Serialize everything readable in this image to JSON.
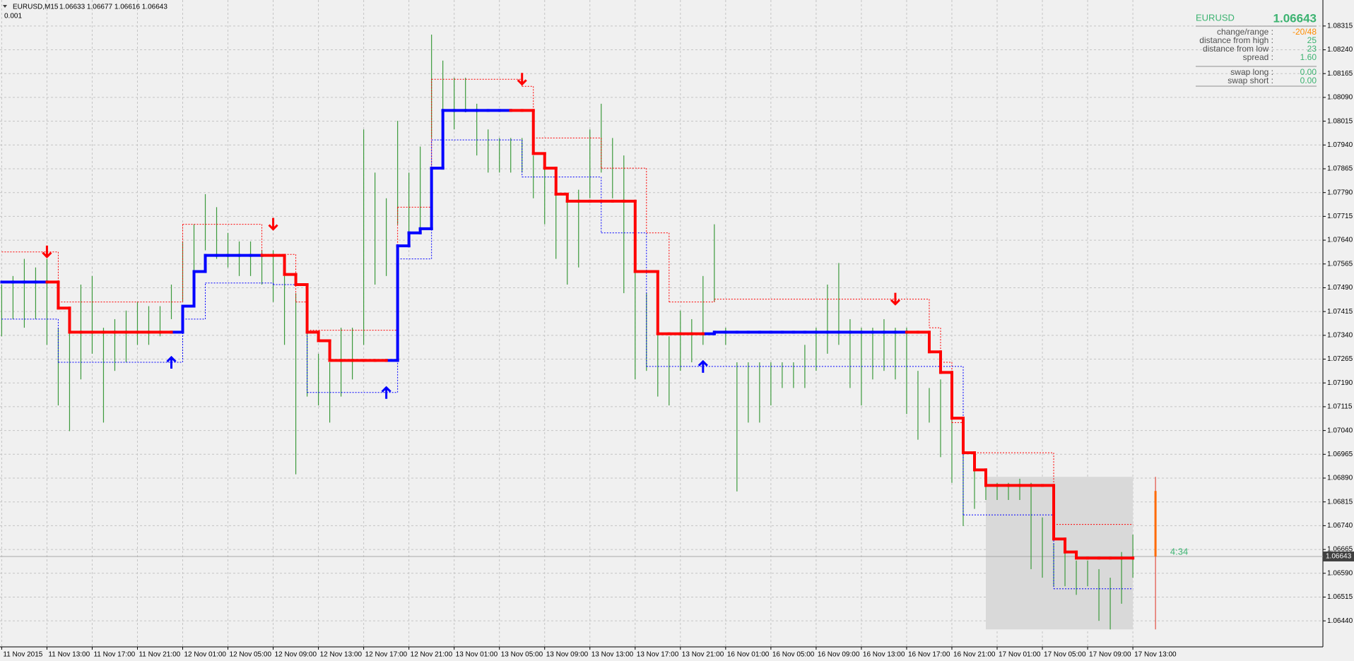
{
  "header": {
    "title": "EURUSD,M15",
    "ohlc": "1.06633 1.06677 1.06616 1.06643",
    "sub": "0.001"
  },
  "info": {
    "symbol": "EURUSD",
    "price": "1.06643",
    "rows": [
      {
        "label": "change/range :",
        "value": "-20/48",
        "color": "#ff8c00"
      },
      {
        "label": "distance from high :",
        "value": "25",
        "color": "#3cb371"
      },
      {
        "label": "distance from low :",
        "value": "23",
        "color": "#3cb371"
      },
      {
        "label": "spread :",
        "value": "1.60",
        "color": "#3cb371"
      },
      {
        "label": "swap long :",
        "value": "0.00",
        "color": "#3cb371"
      },
      {
        "label": "swap short :",
        "value": "0.00",
        "color": "#3cb371"
      }
    ]
  },
  "chart_data": {
    "type": "ohlc",
    "color": "#3c9a3c",
    "grid": true,
    "xlim": [
      -0.15,
      116.8
    ],
    "ylim": [
      1.06358,
      1.08397
    ],
    "xticks": [
      {
        "value": 0,
        "label": "11 Nov 2015"
      },
      {
        "value": 4,
        "label": "11 Nov 13:00"
      },
      {
        "value": 8,
        "label": "11 Nov 17:00"
      },
      {
        "value": 12,
        "label": "11 Nov 21:00"
      },
      {
        "value": 16,
        "label": "12 Nov 01:00"
      },
      {
        "value": 20,
        "label": "12 Nov 05:00"
      },
      {
        "value": 24,
        "label": "12 Nov 09:00"
      },
      {
        "value": 28,
        "label": "12 Nov 13:00"
      },
      {
        "value": 32,
        "label": "12 Nov 17:00"
      },
      {
        "value": 36,
        "label": "12 Nov 21:00"
      },
      {
        "value": 40,
        "label": "13 Nov 01:00"
      },
      {
        "value": 44,
        "label": "13 Nov 05:00"
      },
      {
        "value": 48,
        "label": "13 Nov 09:00"
      },
      {
        "value": 52,
        "label": "13 Nov 13:00"
      },
      {
        "value": 56,
        "label": "13 Nov 17:00"
      },
      {
        "value": 60,
        "label": "13 Nov 21:00"
      },
      {
        "value": 64,
        "label": "16 Nov 01:00"
      },
      {
        "value": 68,
        "label": "16 Nov 05:00"
      },
      {
        "value": 72,
        "label": "16 Nov 09:00"
      },
      {
        "value": 76,
        "label": "16 Nov 13:00"
      },
      {
        "value": 80,
        "label": "16 Nov 17:00"
      },
      {
        "value": 84,
        "label": "16 Nov 21:00"
      },
      {
        "value": 88,
        "label": "17 Nov 01:00"
      },
      {
        "value": 92,
        "label": "17 Nov 05:00"
      },
      {
        "value": 96,
        "label": "17 Nov 09:00"
      },
      {
        "value": 100,
        "label": "17 Nov 13:00"
      }
    ],
    "yticks": [
      1.08315,
      {
        "value": 1.0824,
        "label": "1.08240"
      },
      1.08165,
      {
        "value": 1.0809,
        "label": "1.08090"
      },
      1.08015,
      {
        "value": 1.0794,
        "label": "1.07940"
      },
      1.07865,
      {
        "value": 1.0779,
        "label": "1.07790"
      },
      1.07715,
      {
        "value": 1.0764,
        "label": "1.07640"
      },
      1.07565,
      {
        "value": 1.0749,
        "label": "1.07490"
      },
      1.07415,
      {
        "value": 1.0734,
        "label": "1.07340"
      },
      1.07265,
      {
        "value": 1.0719,
        "label": "1.07190"
      },
      1.07115,
      {
        "value": 1.0704,
        "label": "1.07040"
      },
      1.06965,
      {
        "value": 1.0689,
        "label": "1.06890"
      },
      1.06815,
      {
        "value": 1.0674,
        "label": "1.06740"
      },
      1.06665,
      {
        "value": 1.0659,
        "label": "1.06590"
      },
      1.06515,
      {
        "value": 1.0644,
        "label": "1.06440"
      }
    ],
    "high": [
      1.075,
      1.07527,
      1.07581,
      1.07554,
      1.07581,
      1.07364,
      1.07364,
      1.075,
      1.07527,
      1.07364,
      1.07391,
      1.07418,
      1.07445,
      1.07432,
      1.07432,
      1.075,
      1.07636,
      1.0769,
      1.07785,
      1.07744,
      1.07663,
      1.07636,
      1.07636,
      1.07608,
      1.07608,
      1.07527,
      1.07473,
      1.07364,
      1.07282,
      1.07255,
      1.07364,
      1.07364,
      1.07989,
      1.07853,
      1.07772,
      1.08016,
      1.07853,
      1.07935,
      1.08288,
      1.08206,
      1.08152,
      1.08152,
      1.0807,
      1.07989,
      1.07962,
      1.07962,
      1.07962,
      1.07907,
      1.0788,
      1.07799,
      1.07772,
      1.07799,
      1.07989,
      1.0807,
      1.07962,
      1.07907,
      1.07581,
      1.07473,
      1.07391,
      1.07337,
      1.07418,
      1.07391,
      1.07527,
      1.0769,
      1.07364,
      1.07255,
      1.07255,
      1.07255,
      1.07255,
      1.07255,
      1.07255,
      1.0731,
      1.07364,
      1.075,
      1.07568,
      1.07391,
      1.07364,
      1.07364,
      1.07391,
      1.07364,
      1.07364,
      1.07228,
      1.07174,
      1.07201,
      1.07092,
      1.06984,
      1.06929,
      1.06875,
      1.06875,
      1.06875,
      1.06888,
      1.06875,
      1.06766,
      1.06685,
      1.06657,
      1.0663,
      1.0663,
      1.06603,
      1.06576,
      1.06657,
      1.06712
    ],
    "low": [
      1.07337,
      1.07391,
      1.07364,
      1.07391,
      1.0731,
      1.07119,
      1.07038,
      1.07201,
      1.07282,
      1.07065,
      1.07228,
      1.07255,
      1.0731,
      1.0731,
      1.07337,
      1.07391,
      1.07445,
      1.07527,
      1.07608,
      1.07581,
      1.07554,
      1.07527,
      1.07527,
      1.075,
      1.07445,
      1.0731,
      1.06902,
      1.07147,
      1.07119,
      1.07065,
      1.07147,
      1.07201,
      1.0731,
      1.075,
      1.07527,
      1.0769,
      1.07636,
      1.07663,
      1.07962,
      1.08016,
      1.07989,
      1.08043,
      1.07907,
      1.07853,
      1.07853,
      1.07853,
      1.07853,
      1.07772,
      1.0769,
      1.07581,
      1.075,
      1.07554,
      1.07772,
      1.07853,
      1.07772,
      1.07473,
      1.07201,
      1.07228,
      1.07147,
      1.07119,
      1.07228,
      1.07255,
      1.0731,
      1.07445,
      1.0731,
      1.06848,
      1.07065,
      1.07065,
      1.07119,
      1.07174,
      1.07174,
      1.07174,
      1.07228,
      1.07282,
      1.0731,
      1.07174,
      1.07119,
      1.07201,
      1.07228,
      1.07201,
      1.07092,
      1.07011,
      1.07065,
      1.06956,
      1.06875,
      1.06739,
      1.06793,
      1.06821,
      1.06821,
      1.06821,
      1.06821,
      1.06603,
      1.06576,
      1.06549,
      1.06549,
      1.06522,
      1.06549,
      1.0644,
      1.06413,
      1.06494,
      1.06576
    ],
    "lines": [
      {
        "color": "#ff0000",
        "width": 1,
        "style": "dotted",
        "values": [
          1.07603,
          1.07603,
          1.07603,
          1.07603,
          1.07603,
          1.07445,
          1.07445,
          1.07445,
          1.07445,
          1.07445,
          1.07445,
          1.07445,
          1.07445,
          1.07445,
          1.07445,
          1.07445,
          1.0769,
          1.0769,
          1.0769,
          1.0769,
          1.0769,
          1.0769,
          1.0769,
          1.07595,
          1.07595,
          1.07595,
          1.07445,
          1.07356,
          1.07356,
          1.07356,
          1.07356,
          1.07356,
          1.07356,
          1.07356,
          1.07356,
          1.07744,
          1.07744,
          1.07744,
          1.08147,
          1.08147,
          1.08147,
          1.08147,
          1.08147,
          1.08147,
          1.08147,
          1.08147,
          1.08125,
          1.07962,
          1.07962,
          1.07962,
          1.07962,
          1.07962,
          1.07962,
          1.07867,
          1.07867,
          1.07867,
          1.07867,
          1.07663,
          1.07663,
          1.07445,
          1.07445,
          1.07445,
          1.07445,
          1.07454,
          1.07454,
          1.07454,
          1.07454,
          1.07454,
          1.07454,
          1.07454,
          1.07454,
          1.07454,
          1.07454,
          1.07454,
          1.07454,
          1.07454,
          1.07454,
          1.07454,
          1.07454,
          1.07454,
          1.07454,
          1.07454,
          1.07364,
          1.07255,
          1.07065,
          1.0697,
          1.0697,
          1.0697,
          1.0697,
          1.0697,
          1.0697,
          1.0697,
          1.0697,
          1.06744,
          1.06744,
          1.06744,
          1.06744,
          1.06744,
          1.06744,
          1.06744,
          1.06744
        ]
      },
      {
        "color": "#0000ff",
        "width": 1,
        "style": "dotted",
        "values": [
          1.07391,
          1.07391,
          1.07391,
          1.07391,
          1.07391,
          1.07255,
          1.07255,
          1.07255,
          1.07255,
          1.07255,
          1.07255,
          1.07255,
          1.07255,
          1.07255,
          1.07255,
          1.07255,
          1.07391,
          1.07391,
          1.07505,
          1.07505,
          1.07505,
          1.07505,
          1.07505,
          1.07505,
          1.075,
          1.075,
          1.075,
          1.0716,
          1.0716,
          1.0716,
          1.0716,
          1.0716,
          1.0716,
          1.0716,
          1.0716,
          1.07581,
          1.07581,
          1.07581,
          1.07956,
          1.07956,
          1.07956,
          1.07956,
          1.07956,
          1.07956,
          1.07956,
          1.07956,
          1.07839,
          1.07839,
          1.07839,
          1.07839,
          1.07839,
          1.07839,
          1.07839,
          1.07663,
          1.07663,
          1.07663,
          1.07663,
          1.07242,
          1.07242,
          1.07242,
          1.07242,
          1.07242,
          1.07242,
          1.07242,
          1.07242,
          1.07242,
          1.07242,
          1.07242,
          1.07242,
          1.07242,
          1.07242,
          1.07242,
          1.07242,
          1.07242,
          1.07242,
          1.07242,
          1.07242,
          1.07242,
          1.07242,
          1.07242,
          1.07242,
          1.07242,
          1.07242,
          1.07242,
          1.07242,
          1.06774,
          1.06774,
          1.06774,
          1.06774,
          1.06774,
          1.06774,
          1.06774,
          1.06774,
          1.06541,
          1.06541,
          1.06541,
          1.06541,
          1.06541,
          1.06541,
          1.06541,
          1.06541
        ]
      },
      {
        "color": "#0000ff",
        "width": 4,
        "style": "solid",
        "values": [
          1.07508,
          1.07508,
          1.07508,
          1.07508,
          1.07508,
          null,
          null,
          null,
          null,
          null,
          null,
          null,
          null,
          null,
          null,
          1.0735,
          1.07432,
          1.07541,
          1.07592,
          1.07592,
          1.07592,
          1.07592,
          1.07592,
          1.07592,
          null,
          null,
          null,
          null,
          null,
          null,
          null,
          null,
          null,
          null,
          1.07261,
          1.07622,
          1.07663,
          1.07676,
          1.07867,
          1.08049,
          1.08049,
          1.08049,
          1.08049,
          1.08049,
          1.08049,
          1.08049,
          null,
          null,
          null,
          null,
          null,
          null,
          null,
          null,
          null,
          null,
          null,
          null,
          null,
          null,
          null,
          null,
          1.07345,
          1.0735,
          1.0735,
          1.0735,
          1.0735,
          1.0735,
          1.0735,
          1.0735,
          1.0735,
          1.0735,
          1.0735,
          1.0735,
          1.0735,
          1.0735,
          1.0735,
          1.0735,
          1.0735,
          1.0735,
          1.0735,
          null,
          null,
          null,
          null,
          null,
          null,
          null,
          null,
          null,
          null,
          null,
          null,
          null,
          null,
          null,
          null,
          null,
          null,
          null,
          null
        ]
      },
      {
        "color": "#ff0000",
        "width": 4,
        "style": "solid",
        "values": [
          null,
          null,
          null,
          null,
          1.07508,
          1.07426,
          1.0735,
          1.0735,
          1.0735,
          1.0735,
          1.0735,
          1.0735,
          1.0735,
          1.0735,
          1.0735,
          1.0735,
          null,
          null,
          null,
          null,
          null,
          null,
          null,
          1.07592,
          1.07592,
          1.07532,
          1.075,
          1.0735,
          1.07323,
          1.07261,
          1.07261,
          1.07261,
          1.07261,
          1.07261,
          1.07261,
          null,
          null,
          null,
          null,
          null,
          null,
          null,
          null,
          null,
          null,
          1.08049,
          1.08049,
          1.07913,
          1.07867,
          1.07785,
          1.07763,
          1.07763,
          1.07763,
          1.07763,
          1.07763,
          1.07763,
          1.07541,
          1.07541,
          1.07345,
          1.07345,
          1.07345,
          1.07345,
          1.07345,
          null,
          null,
          null,
          null,
          null,
          null,
          null,
          null,
          null,
          null,
          null,
          null,
          null,
          null,
          null,
          null,
          null,
          1.0735,
          1.0735,
          1.07288,
          1.07223,
          1.07079,
          1.0697,
          1.06916,
          1.06867,
          1.06867,
          1.06867,
          1.06867,
          1.06867,
          1.06867,
          1.06698,
          1.06657,
          1.06638,
          1.06638,
          1.06638,
          1.06638,
          1.06638,
          1.06638
        ]
      }
    ],
    "sell": {
      "color": "#ff0000",
      "x": [
        4,
        24,
        46,
        79
      ],
      "values": [
        1.07603,
        1.0769,
        1.08147,
        1.07454
      ]
    },
    "buy": {
      "color": "#0000ff",
      "x": [
        15,
        34,
        62
      ],
      "values": [
        1.07255,
        1.0716,
        1.07242
      ]
    },
    "range_box": {
      "start": 87,
      "end": 100,
      "high": 1.06894,
      "low": 1.06413
    },
    "current_price": 1.06643,
    "timer": "4:34"
  }
}
